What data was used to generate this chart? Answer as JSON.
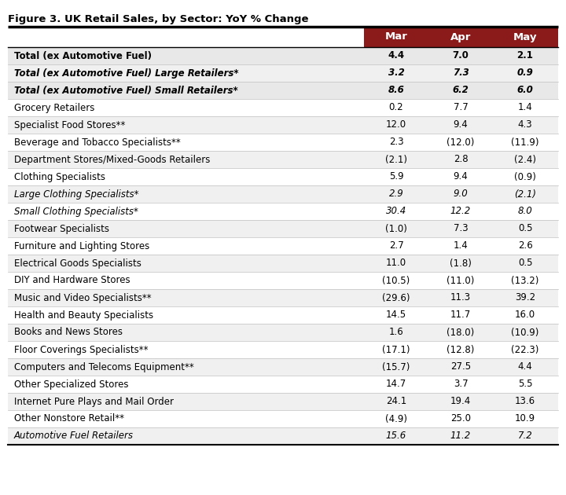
{
  "title": "Figure 3. UK Retail Sales, by Sector: YoY % Change",
  "columns": [
    "Mar",
    "Apr",
    "May"
  ],
  "rows": [
    {
      "label": "Total (ex Automotive Fuel)",
      "values": [
        "4.4",
        "7.0",
        "2.1"
      ],
      "bold": true,
      "italic": false,
      "bg": "#e8e8e8"
    },
    {
      "label": "Total (ex Automotive Fuel) Large Retailers*",
      "values": [
        "3.2",
        "7.3",
        "0.9"
      ],
      "bold": true,
      "italic": true,
      "bg": "#f0f0f0"
    },
    {
      "label": "Total (ex Automotive Fuel) Small Retailers*",
      "values": [
        "8.6",
        "6.2",
        "6.0"
      ],
      "bold": true,
      "italic": true,
      "bg": "#e8e8e8"
    },
    {
      "label": "Grocery Retailers",
      "values": [
        "0.2",
        "7.7",
        "1.4"
      ],
      "bold": false,
      "italic": false,
      "bg": "#ffffff"
    },
    {
      "label": "Specialist Food Stores**",
      "values": [
        "12.0",
        "9.4",
        "4.3"
      ],
      "bold": false,
      "italic": false,
      "bg": "#f0f0f0"
    },
    {
      "label": "Beverage and Tobacco Specialists**",
      "values": [
        "2.3",
        "(12.0)",
        "(11.9)"
      ],
      "bold": false,
      "italic": false,
      "bg": "#ffffff"
    },
    {
      "label": "Department Stores/Mixed-Goods Retailers",
      "values": [
        "(2.1)",
        "2.8",
        "(2.4)"
      ],
      "bold": false,
      "italic": false,
      "bg": "#f0f0f0"
    },
    {
      "label": "Clothing Specialists",
      "values": [
        "5.9",
        "9.4",
        "(0.9)"
      ],
      "bold": false,
      "italic": false,
      "bg": "#ffffff"
    },
    {
      "label": "Large Clothing Specialists*",
      "values": [
        "2.9",
        "9.0",
        "(2.1)"
      ],
      "bold": false,
      "italic": true,
      "bg": "#f0f0f0"
    },
    {
      "label": "Small Clothing Specialists*",
      "values": [
        "30.4",
        "12.2",
        "8.0"
      ],
      "bold": false,
      "italic": true,
      "bg": "#ffffff"
    },
    {
      "label": "Footwear Specialists",
      "values": [
        "(1.0)",
        "7.3",
        "0.5"
      ],
      "bold": false,
      "italic": false,
      "bg": "#f0f0f0"
    },
    {
      "label": "Furniture and Lighting Stores",
      "values": [
        "2.7",
        "1.4",
        "2.6"
      ],
      "bold": false,
      "italic": false,
      "bg": "#ffffff"
    },
    {
      "label": "Electrical Goods Specialists",
      "values": [
        "11.0",
        "(1.8)",
        "0.5"
      ],
      "bold": false,
      "italic": false,
      "bg": "#f0f0f0"
    },
    {
      "label": "DIY and Hardware Stores",
      "values": [
        "(10.5)",
        "(11.0)",
        "(13.2)"
      ],
      "bold": false,
      "italic": false,
      "bg": "#ffffff"
    },
    {
      "label": "Music and Video Specialists**",
      "values": [
        "(29.6)",
        "11.3",
        "39.2"
      ],
      "bold": false,
      "italic": false,
      "bg": "#f0f0f0"
    },
    {
      "label": "Health and Beauty Specialists",
      "values": [
        "14.5",
        "11.7",
        "16.0"
      ],
      "bold": false,
      "italic": false,
      "bg": "#ffffff"
    },
    {
      "label": "Books and News Stores",
      "values": [
        "1.6",
        "(18.0)",
        "(10.9)"
      ],
      "bold": false,
      "italic": false,
      "bg": "#f0f0f0"
    },
    {
      "label": "Floor Coverings Specialists**",
      "values": [
        "(17.1)",
        "(12.8)",
        "(22.3)"
      ],
      "bold": false,
      "italic": false,
      "bg": "#ffffff"
    },
    {
      "label": "Computers and Telecoms Equipment**",
      "values": [
        "(15.7)",
        "27.5",
        "4.4"
      ],
      "bold": false,
      "italic": false,
      "bg": "#f0f0f0"
    },
    {
      "label": "Other Specialized Stores",
      "values": [
        "14.7",
        "3.7",
        "5.5"
      ],
      "bold": false,
      "italic": false,
      "bg": "#ffffff"
    },
    {
      "label": "Internet Pure Plays and Mail Order",
      "values": [
        "24.1",
        "19.4",
        "13.6"
      ],
      "bold": false,
      "italic": false,
      "bg": "#f0f0f0"
    },
    {
      "label": "Other Nonstore Retail**",
      "values": [
        "(4.9)",
        "25.0",
        "10.9"
      ],
      "bold": false,
      "italic": false,
      "bg": "#ffffff"
    },
    {
      "label": "Automotive Fuel Retailers",
      "values": [
        "15.6",
        "11.2",
        "7.2"
      ],
      "bold": false,
      "italic": true,
      "bg": "#f0f0f0"
    }
  ],
  "header_bg": "#8b1a1a",
  "header_text_color": "#ffffff",
  "title_fontsize": 9.5,
  "cell_fontsize": 8.5,
  "header_fontsize": 9.5,
  "background_color": "#ffffff"
}
